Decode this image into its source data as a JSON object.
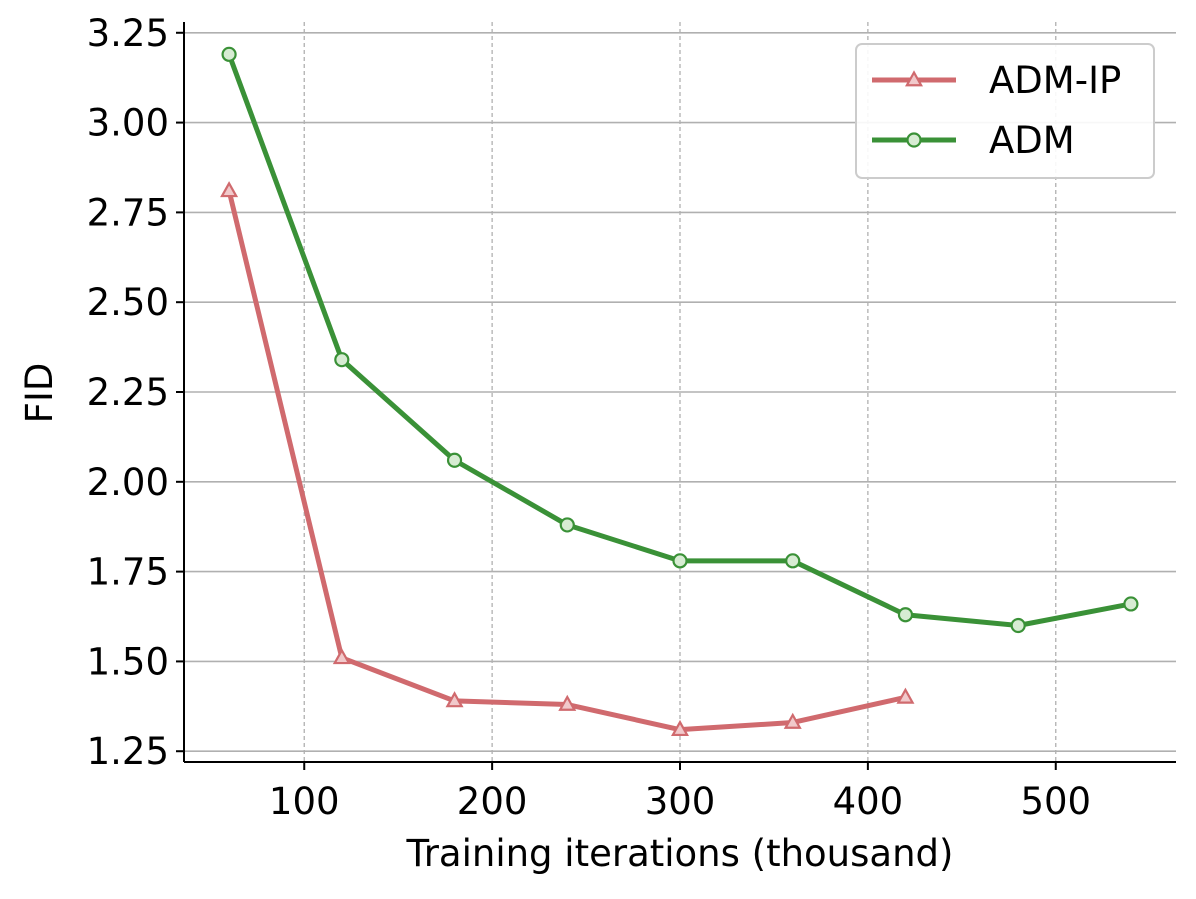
{
  "chart_data": {
    "type": "line",
    "title": "",
    "xlabel": "Training iterations (thousand)",
    "ylabel": "FID",
    "xlim": [
      36,
      564
    ],
    "ylim": [
      1.22,
      3.28
    ],
    "xticks": [
      100,
      200,
      300,
      400,
      500
    ],
    "yticks": [
      1.25,
      1.5,
      1.75,
      2.0,
      2.25,
      2.5,
      2.75,
      3.0,
      3.25
    ],
    "ytick_labels": [
      "1.25",
      "1.50",
      "1.75",
      "2.00",
      "2.25",
      "2.50",
      "2.75",
      "3.00",
      "3.25"
    ],
    "grid": {
      "x": "dashed",
      "y": "solid"
    },
    "legend_position": "top-right",
    "series": [
      {
        "name": "ADM-IP",
        "color": "#d06a6e",
        "marker": "triangle",
        "x": [
          60,
          120,
          180,
          240,
          300,
          360,
          420
        ],
        "y": [
          2.81,
          1.51,
          1.39,
          1.38,
          1.31,
          1.33,
          1.4
        ]
      },
      {
        "name": "ADM",
        "color": "#3a9137",
        "marker": "circle",
        "x": [
          60,
          120,
          180,
          240,
          300,
          360,
          420,
          480,
          540
        ],
        "y": [
          3.19,
          2.34,
          2.06,
          1.88,
          1.78,
          1.78,
          1.63,
          1.6,
          1.66
        ]
      }
    ]
  }
}
